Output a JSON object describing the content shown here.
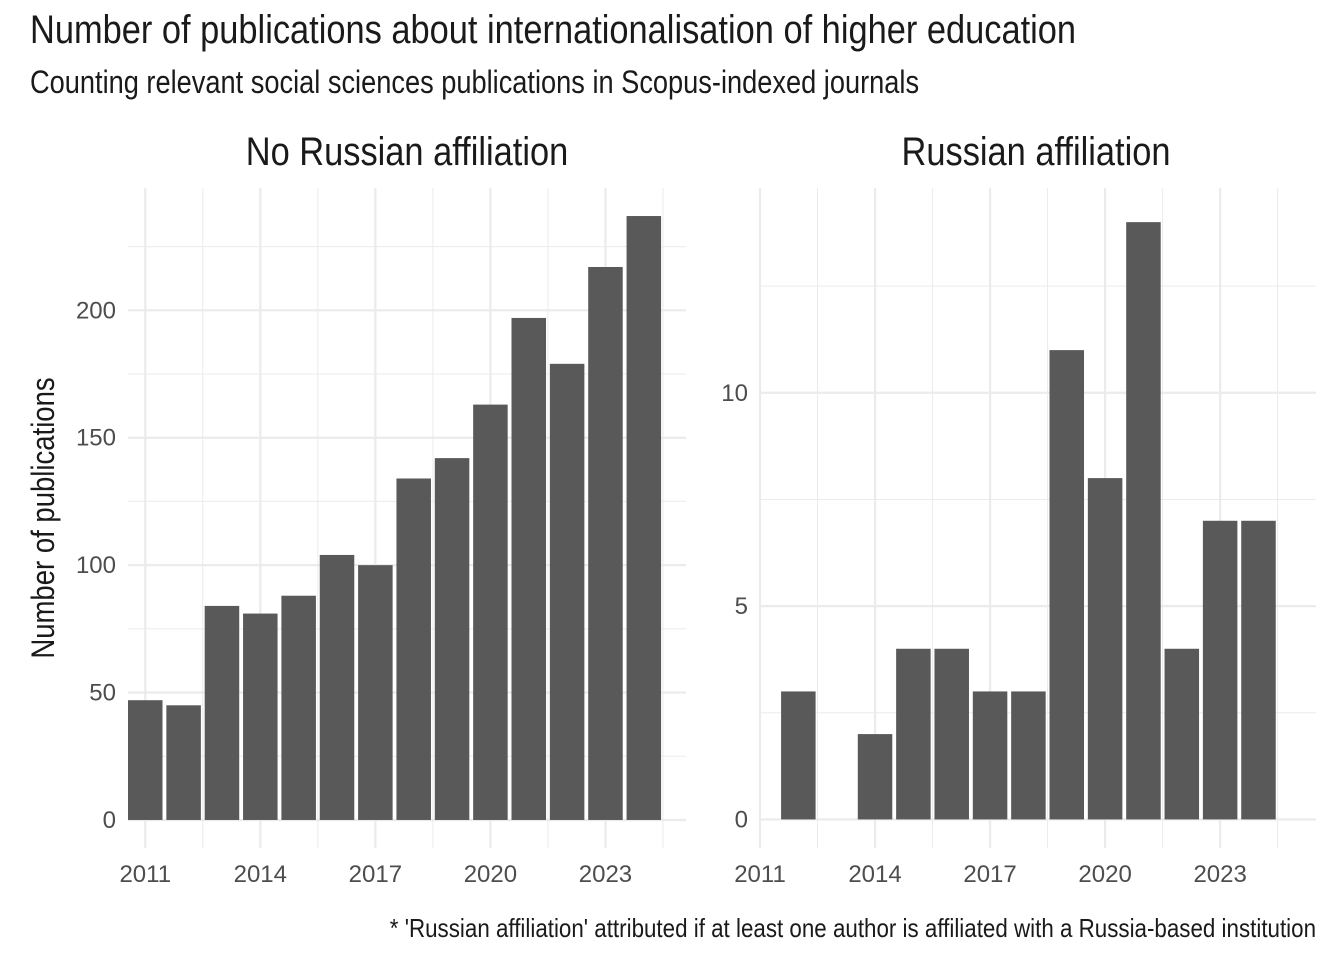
{
  "title": "Number of publications about internationalisation of higher education",
  "subtitle": "Counting relevant social sciences publications in Scopus-indexed journals",
  "caption": "* 'Russian affiliation' attributed if at least one author is affiliated with a Russia-based institution",
  "chart_data": {
    "type": "bar",
    "ylabel": "Number of publications",
    "xlabel": "",
    "bar_color": "#595959",
    "grid_color": "#ebebeb",
    "grid": true,
    "facets": [
      {
        "label": "No Russian affiliation",
        "x": [
          2011,
          2012,
          2013,
          2014,
          2015,
          2016,
          2017,
          2018,
          2019,
          2020,
          2021,
          2022,
          2023,
          2024
        ],
        "values": [
          47,
          45,
          84,
          81,
          88,
          104,
          100,
          134,
          142,
          163,
          197,
          179,
          217,
          237
        ],
        "xlim": [
          2010.55,
          2025.1
        ],
        "ylim": [
          -11,
          248
        ],
        "x_ticks": [
          2011,
          2014,
          2017,
          2020,
          2023
        ],
        "x_tick_labels": [
          "2011",
          "2014",
          "2017",
          "2020",
          "2023"
        ],
        "y_ticks": [
          0,
          50,
          100,
          150,
          200
        ],
        "y_tick_labels": [
          "0",
          "50",
          "100",
          "150",
          "200"
        ]
      },
      {
        "label": "Russian affiliation",
        "x": [
          2012,
          2014,
          2015,
          2016,
          2017,
          2018,
          2019,
          2020,
          2021,
          2022,
          2023,
          2024
        ],
        "values": [
          3,
          2,
          4,
          4,
          3,
          3,
          11,
          8,
          14,
          4,
          7,
          7
        ],
        "xlim": [
          2011,
          2025.5
        ],
        "ylim": [
          -0.67,
          14.8
        ],
        "x_ticks": [
          2011,
          2014,
          2017,
          2020,
          2023
        ],
        "x_tick_labels": [
          "2011",
          "2014",
          "2017",
          "2020",
          "2023"
        ],
        "y_ticks": [
          0,
          5,
          10
        ],
        "y_tick_labels": [
          "0",
          "5",
          "10"
        ]
      }
    ]
  }
}
